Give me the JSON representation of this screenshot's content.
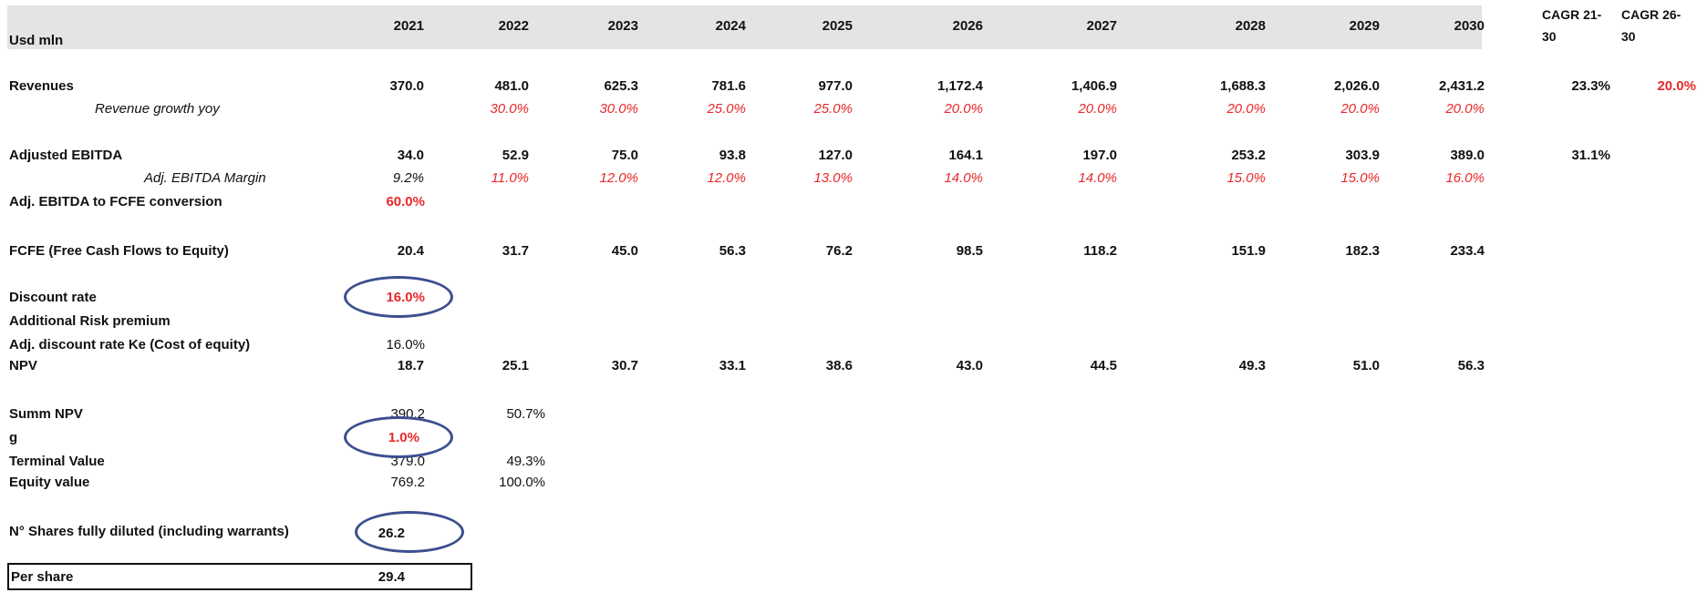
{
  "header": {
    "unit_label": "Usd mln",
    "years": [
      "2021",
      "2022",
      "2023",
      "2024",
      "2025",
      "2026",
      "2027",
      "2028",
      "2029",
      "2030"
    ],
    "cagr1": "CAGR 21-\n30",
    "cagr1_line1": "CAGR 21-",
    "cagr1_line2": "30",
    "cagr2_line1": "CAGR 26-",
    "cagr2_line2": "30"
  },
  "rows": {
    "revenues": {
      "label": "Revenues",
      "values": [
        "370.0",
        "481.0",
        "625.3",
        "781.6",
        "977.0",
        "1,172.4",
        "1,406.9",
        "1,688.3",
        "2,026.0",
        "2,431.2"
      ],
      "cagr1": "23.3%",
      "cagr2": "20.0%"
    },
    "revenue_growth": {
      "label": "Revenue growth yoy",
      "values": [
        "",
        "30.0%",
        "30.0%",
        "25.0%",
        "25.0%",
        "20.0%",
        "20.0%",
        "20.0%",
        "20.0%",
        "20.0%"
      ]
    },
    "adj_ebitda": {
      "label": "Adjusted EBITDA",
      "values": [
        "34.0",
        "52.9",
        "75.0",
        "93.8",
        "127.0",
        "164.1",
        "197.0",
        "253.2",
        "303.9",
        "389.0"
      ],
      "cagr1": "31.1%"
    },
    "ebitda_margin": {
      "label": "Adj. EBITDA Margin",
      "values": [
        "9.2%",
        "11.0%",
        "12.0%",
        "12.0%",
        "13.0%",
        "14.0%",
        "14.0%",
        "15.0%",
        "15.0%",
        "16.0%"
      ]
    },
    "fcfe_conversion": {
      "label": "Adj. EBITDA to FCFE conversion",
      "value": "60.0%"
    },
    "fcfe": {
      "label": "FCFE (Free Cash Flows to Equity)",
      "values": [
        "20.4",
        "31.7",
        "45.0",
        "56.3",
        "76.2",
        "98.5",
        "118.2",
        "151.9",
        "182.3",
        "233.4"
      ]
    },
    "discount_rate": {
      "label": "Discount rate",
      "value": "16.0%"
    },
    "risk_premium": {
      "label": "Additional Risk premium"
    },
    "adj_discount": {
      "label": "Adj. discount rate Ke (Cost of equity)",
      "value": "16.0%"
    },
    "npv": {
      "label": "NPV",
      "values": [
        "18.7",
        "25.1",
        "30.7",
        "33.1",
        "38.6",
        "43.0",
        "44.5",
        "49.3",
        "51.0",
        "56.3"
      ]
    },
    "summ_npv": {
      "label": "Summ NPV",
      "value": "390.2",
      "pct": "50.7%"
    },
    "g": {
      "label": "g",
      "value": "1.0%"
    },
    "terminal_value": {
      "label": "Terminal Value",
      "value": "379.0",
      "pct": "49.3%"
    },
    "equity_value": {
      "label": "Equity value",
      "value": "769.2",
      "pct": "100.0%"
    },
    "shares": {
      "label": "N° Shares fully diluted (including warrants)",
      "value": "26.2"
    },
    "per_share": {
      "label": "Per share",
      "value": "29.4"
    }
  },
  "colors": {
    "header_band": "#e4e4e4",
    "accent_red": "#e8282b",
    "ellipse": "#3c4f8f"
  }
}
